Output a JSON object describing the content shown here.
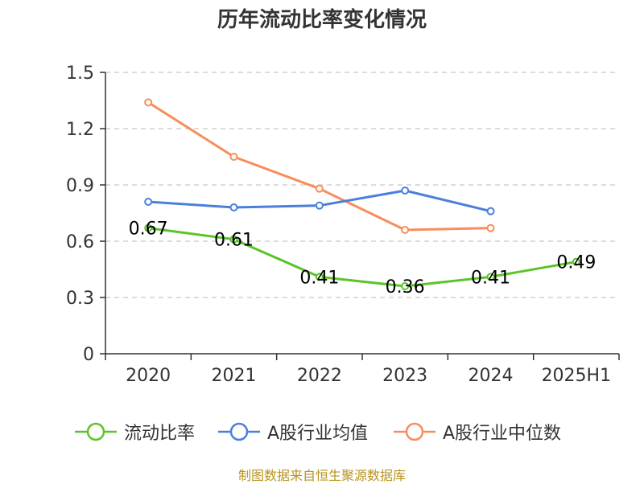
{
  "chart_data": {
    "type": "line",
    "title": "历年流动比率变化情况",
    "categories": [
      "2020",
      "2021",
      "2022",
      "2023",
      "2024",
      "2025H1"
    ],
    "ylim": [
      0,
      1.5
    ],
    "yticks": [
      "0",
      "0.3",
      "0.6",
      "0.9",
      "1.2",
      "1.5"
    ],
    "grid": true,
    "legend_position": "bottom",
    "series": [
      {
        "name": "流动比率",
        "color": "#5bc42a",
        "values": [
          0.67,
          0.61,
          0.41,
          0.36,
          0.41,
          0.49
        ],
        "labels": [
          "0.67",
          "0.61",
          "0.41",
          "0.36",
          "0.41",
          "0.49"
        ]
      },
      {
        "name": "A股行业均值",
        "color": "#4a7fdc",
        "values": [
          0.81,
          0.78,
          0.79,
          0.87,
          0.76,
          null
        ]
      },
      {
        "name": "A股行业中位数",
        "color": "#f98d5a",
        "values": [
          1.34,
          1.05,
          0.88,
          0.66,
          0.67,
          null
        ]
      }
    ]
  },
  "source": "制图数据来自恒生聚源数据库"
}
